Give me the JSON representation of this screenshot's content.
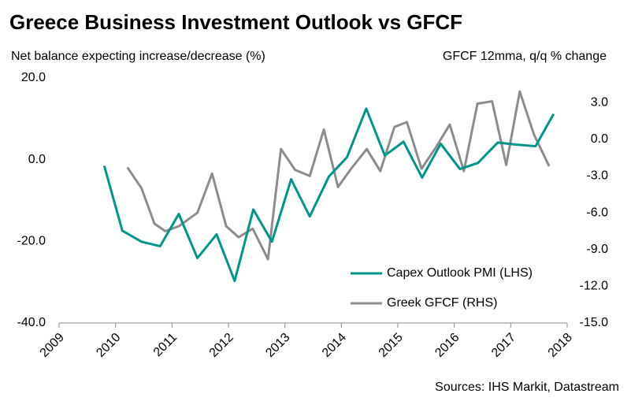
{
  "chart_data": {
    "type": "line",
    "title": "Greece Business Investment Outlook vs GFCF",
    "y_label": "Net balance expecting increase/decrease (%)",
    "y2_label": "GFCF 12mma, q/q % change",
    "source": "Sources: IHS Markit, Datastream",
    "legend": "lower right",
    "xlim": [
      2009,
      2018
    ],
    "xticks": [
      2009,
      2010,
      2011,
      2012,
      2013,
      2014,
      2015,
      2016,
      2017,
      2018
    ],
    "ylim": [
      -40,
      20
    ],
    "yticks": [
      {
        "value": 20,
        "label": "20.0"
      },
      {
        "value": 0,
        "label": "0.0"
      },
      {
        "value": -20,
        "label": "-20.0"
      },
      {
        "value": -40,
        "label": "-40.0"
      }
    ],
    "y2lim": [
      -15,
      5
    ],
    "y2ticks": [
      {
        "value": 3,
        "label": "3.0"
      },
      {
        "value": 0,
        "label": "0.0"
      },
      {
        "value": -3,
        "label": "-3.0"
      },
      {
        "value": -6,
        "label": "-6.0"
      },
      {
        "value": -9,
        "label": "-9.0"
      },
      {
        "value": -12,
        "label": "-12.0"
      },
      {
        "value": -15,
        "label": "-15.0"
      }
    ],
    "series": [
      {
        "name": "Capex Outlook PMI (LHS)",
        "color": "#00958a",
        "axis": "y",
        "x": [
          2009.8,
          2010.12,
          2010.46,
          2010.79,
          2011.12,
          2011.45,
          2011.79,
          2012.11,
          2012.44,
          2012.77,
          2013.11,
          2013.44,
          2013.78,
          2014.1,
          2014.44,
          2014.77,
          2015.1,
          2015.43,
          2015.76,
          2016.1,
          2016.42,
          2016.77,
          2017.09,
          2017.44,
          2017.76
        ],
        "values": [
          -1.5,
          -17.4,
          -20.1,
          -21.2,
          -13.3,
          -24.1,
          -18.3,
          -29.7,
          -12.2,
          -20.1,
          -4.8,
          -13.9,
          -4.1,
          0.6,
          12.5,
          1.0,
          4.4,
          -4.4,
          3.9,
          -2.3,
          -0.8,
          4.2,
          3.7,
          3.3,
          11.2
        ]
      },
      {
        "name": "Greek GFCF (RHS)",
        "color": "#8c8c8c",
        "axis": "y2",
        "x": [
          2010.21,
          2010.46,
          2010.69,
          2010.88,
          2011.12,
          2011.45,
          2011.71,
          2011.96,
          2012.18,
          2012.43,
          2012.7,
          2012.93,
          2013.18,
          2013.44,
          2013.69,
          2013.94,
          2014.19,
          2014.45,
          2014.69,
          2014.94,
          2015.16,
          2015.42,
          2015.67,
          2015.92,
          2016.17,
          2016.41,
          2016.67,
          2016.92,
          2017.16,
          2017.41,
          2017.68
        ],
        "values": [
          -2.3,
          -4.0,
          -6.9,
          -7.5,
          -7.1,
          -6.0,
          -2.8,
          -7.1,
          -8.0,
          -7.3,
          -9.8,
          -0.8,
          -2.5,
          -3.0,
          0.8,
          -3.9,
          -2.3,
          -0.8,
          -2.6,
          1.0,
          1.4,
          -2.4,
          -0.7,
          1.2,
          -2.6,
          2.9,
          3.1,
          -2.1,
          3.9,
          0.4,
          -2.2
        ]
      }
    ]
  }
}
